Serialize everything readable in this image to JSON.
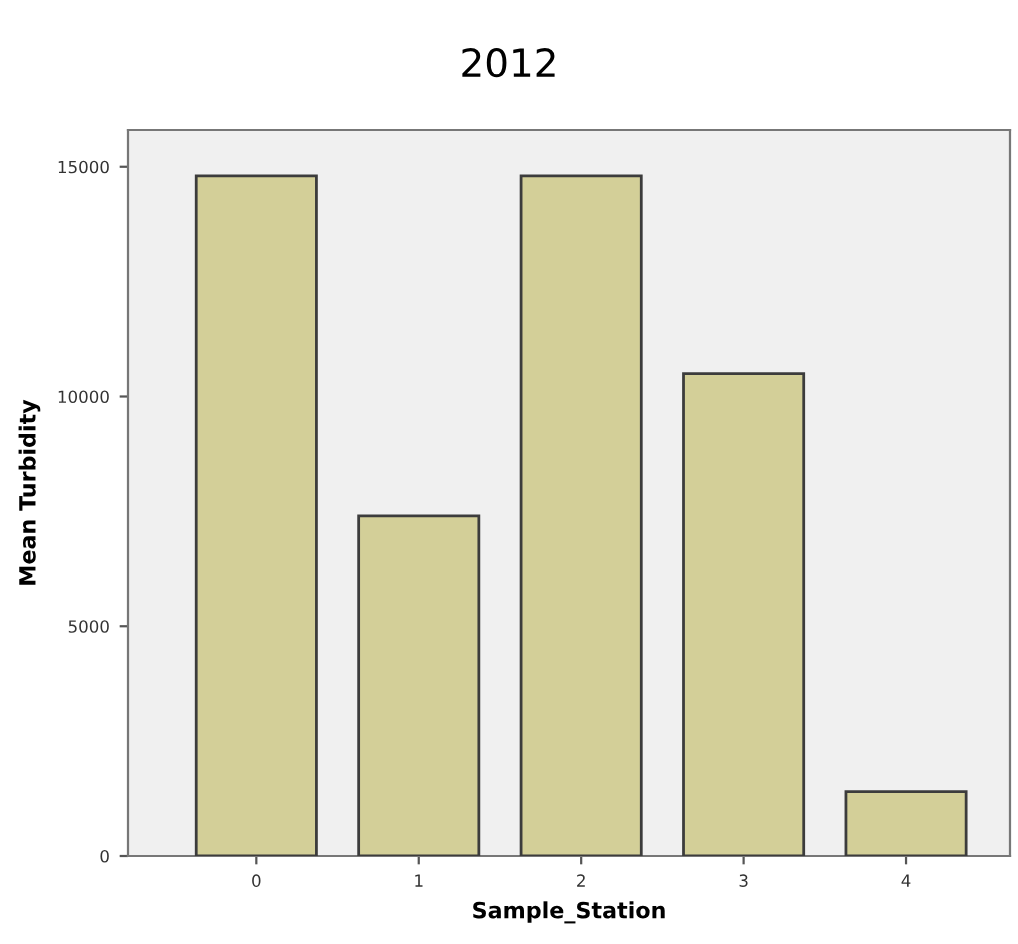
{
  "chart_data": {
    "type": "bar",
    "title": "2012",
    "xlabel": "Sample_Station",
    "ylabel": "Mean Turbidity",
    "categories": [
      "0",
      "1",
      "2",
      "3",
      "4"
    ],
    "values": [
      14800,
      7400,
      14800,
      10500,
      1400
    ],
    "color": "#d3cf98",
    "ylim": [
      0,
      15800
    ],
    "yticks": [
      0,
      5000,
      10000,
      15000
    ],
    "grid": false
  }
}
